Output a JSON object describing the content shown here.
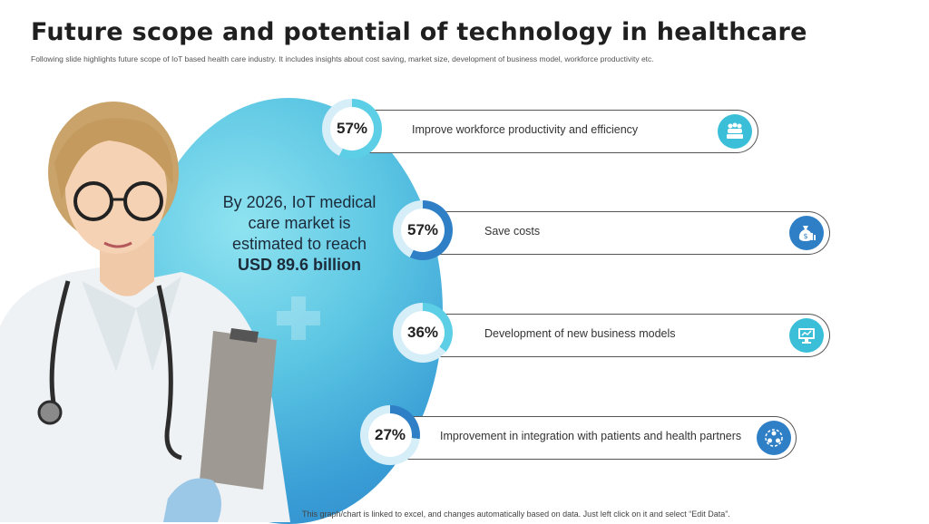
{
  "slide": {
    "title": "Future scope and potential of technology in healthcare",
    "subtitle": "Following slide highlights future scope of IoT based health care industry. It includes insights about cost saving, market size, development of business model, workforce productivity etc.",
    "headline_line1": "By 2026, IoT medical",
    "headline_line2": "care market is",
    "headline_line3": "estimated to reach",
    "headline_bold": "USD 89.6 billion",
    "footer": "This graph/chart is linked to excel,  and changes automatically based on data. Just left click on it and select “Edit Data”."
  },
  "items": [
    {
      "percent_label": "57%",
      "percent_value": 57,
      "text": "Improve workforce productivity and efficiency",
      "icon": "team-icon",
      "icon_color": "#3bbfd9"
    },
    {
      "percent_label": "57%",
      "percent_value": 57,
      "text": "Save costs",
      "icon": "money-bag-icon",
      "icon_color": "#2f7fc6"
    },
    {
      "percent_label": "36%",
      "percent_value": 36,
      "text": "Development of new business models",
      "icon": "monitor-icon",
      "icon_color": "#3bbfd9"
    },
    {
      "percent_label": "27%",
      "percent_value": 27,
      "text": "Improvement  in integration with patients and health partners",
      "icon": "network-icon",
      "icon_color": "#2f7fc6"
    }
  ],
  "colors": {
    "ring_light": "#5ccfe6",
    "ring_dark": "#2f7fc6",
    "ring_track": "#d6eef8"
  }
}
